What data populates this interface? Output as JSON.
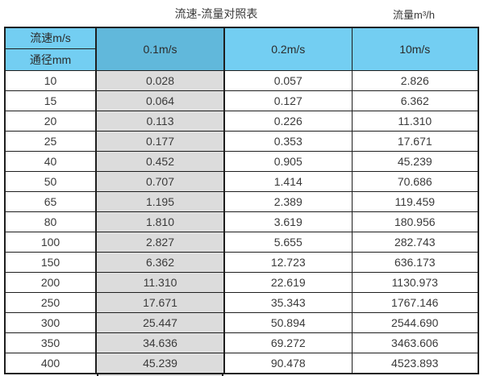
{
  "chart_data": {
    "type": "table",
    "title": "流速-流量对照表",
    "unit_note": "流量m³/h",
    "corner": {
      "top": "流速m/s",
      "bottom": "通径mm"
    },
    "velocity_columns": [
      "0.1m/s",
      "0.2m/s",
      "10m/s"
    ],
    "columns": [
      "通径mm",
      "0.1m/s",
      "0.2m/s",
      "10m/s"
    ],
    "rows": [
      [
        "10",
        "0.028",
        "0.057",
        "2.826"
      ],
      [
        "15",
        "0.064",
        "0.127",
        "6.362"
      ],
      [
        "20",
        "0.113",
        "0.226",
        "11.310"
      ],
      [
        "25",
        "0.177",
        "0.353",
        "17.671"
      ],
      [
        "40",
        "0.452",
        "0.905",
        "45.239"
      ],
      [
        "50",
        "0.707",
        "1.414",
        "70.686"
      ],
      [
        "65",
        "1.195",
        "2.389",
        "119.459"
      ],
      [
        "80",
        "1.810",
        "3.619",
        "180.956"
      ],
      [
        "100",
        "2.827",
        "5.655",
        "282.743"
      ],
      [
        "150",
        "6.362",
        "12.723",
        "636.173"
      ],
      [
        "200",
        "11.310",
        "22.619",
        "1130.973"
      ],
      [
        "250",
        "17.671",
        "35.343",
        "1767.146"
      ],
      [
        "300",
        "25.447",
        "50.894",
        "2544.690"
      ],
      [
        "350",
        "34.636",
        "69.272",
        "3463.606"
      ],
      [
        "400",
        "45.239",
        "90.478",
        "4523.893"
      ]
    ]
  },
  "colors": {
    "header_blue": "#73CEF2",
    "header_blue_dark": "#61B8DB",
    "highlight_gray": "#DCDCDC",
    "border": "#1e1e1e"
  }
}
